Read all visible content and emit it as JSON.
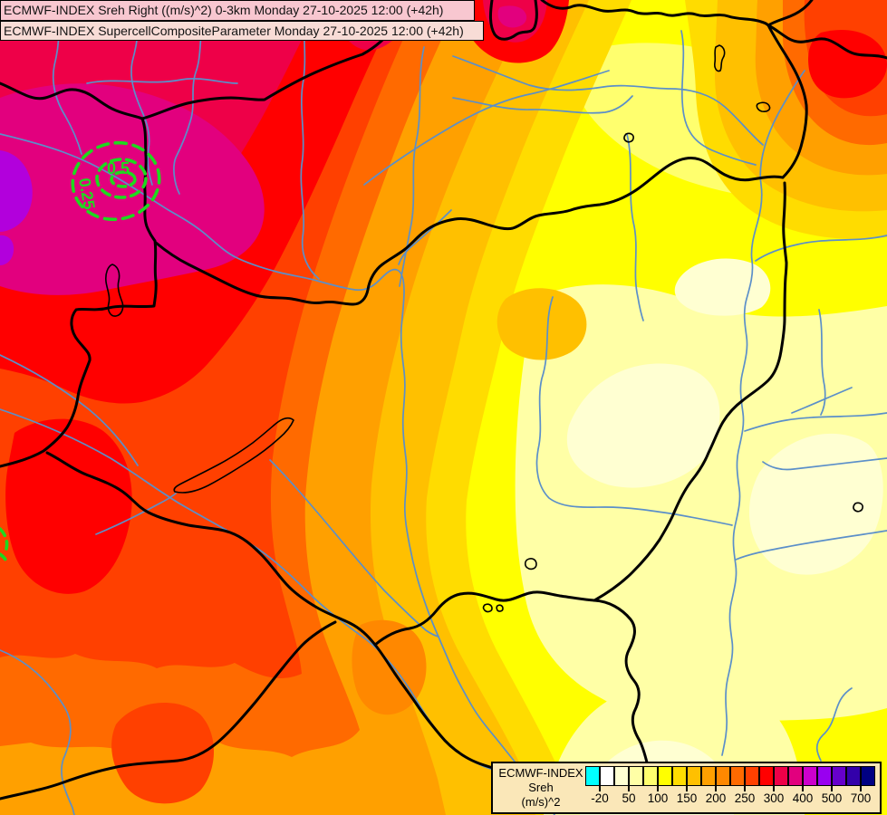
{
  "titles": [
    {
      "text": "ECMWF-INDEX Sreh Right ((m/s)^2) 0-3km Monday 27-10-2025 12:00 (+42h)",
      "bg": "#f8c7d0"
    },
    {
      "text": "ECMWF-INDEX SupercellCompositeParameter Monday 27-10-2025 12:00 (+42h)",
      "bg": "#f8dcd6"
    }
  ],
  "legend": {
    "title_lines": [
      "ECMWF-INDEX",
      "Sreh",
      "(m/s)^2"
    ],
    "panel_bg": "#fae7b8",
    "cells": [
      "#00ffff",
      "#ffffff",
      "#ffffd2",
      "#ffffa6",
      "#ffff6e",
      "#ffff00",
      "#ffdc00",
      "#ffc000",
      "#ffa000",
      "#ff8800",
      "#ff6a00",
      "#ff4000",
      "#ff0000",
      "#ee0048",
      "#e2007e",
      "#cc00cc",
      "#9900f0",
      "#6600cc",
      "#3300aa",
      "#000082"
    ],
    "tick_labels": [
      "-20",
      "50",
      "100",
      "150",
      "200",
      "250",
      "300",
      "400",
      "500",
      "700"
    ],
    "tick_values": [
      -20,
      50,
      100,
      150,
      200,
      250,
      300,
      400,
      500,
      700
    ],
    "labeled_boundaries": [
      1,
      3,
      5,
      7,
      9,
      11,
      13,
      15,
      17,
      19
    ],
    "unit": "(m/s)^2"
  },
  "map": {
    "scp_contours": {
      "outer_label": "0.25",
      "inner_label": "0.5"
    },
    "colors": {
      "border": "#000000",
      "river": "#5b8fc9",
      "scp": "#1fd91f",
      "purple": "#b200dc",
      "lake_outline": "#000000"
    }
  }
}
